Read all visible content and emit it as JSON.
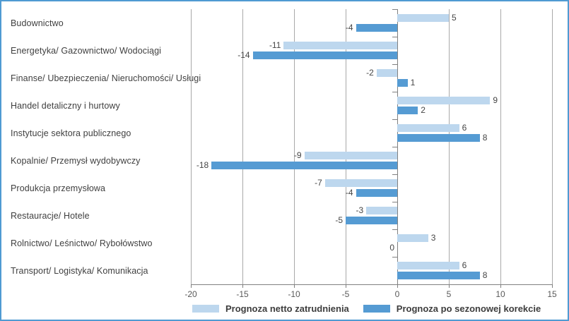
{
  "chart_data": {
    "type": "bar",
    "orientation": "horizontal",
    "title": "",
    "xlabel": "",
    "ylabel": "",
    "categories": [
      "Budownictwo",
      "Energetyka/ Gazownictwo/ Wodociągi",
      "Finanse/ Ubezpieczenia/ Nieruchomości/ Usługi",
      "Handel detaliczny i hurtowy",
      "Instytucje sektora publicznego",
      "Kopalnie/ Przemysł wydobywczy",
      "Produkcja przemysłowa",
      "Restauracje/ Hotele",
      "Rolnictwo/ Leśnictwo/ Rybołówstwo",
      "Transport/ Logistyka/ Komunikacja"
    ],
    "series": [
      {
        "name": "Prognoza netto zatrudnienia",
        "color": "#bdd7ee",
        "values": [
          5,
          -11,
          -2,
          9,
          6,
          -9,
          -7,
          -3,
          3,
          6
        ]
      },
      {
        "name": "Prognoza po sezonowej korekcie",
        "color": "#559bd3",
        "values": [
          -4,
          -14,
          1,
          2,
          8,
          -18,
          -4,
          -5,
          0,
          8
        ]
      }
    ],
    "xlim": [
      -20,
      15
    ],
    "xticks": [
      -20,
      -15,
      -10,
      -5,
      0,
      5,
      10,
      15
    ],
    "grid": true,
    "data_labels": true,
    "legend_position": "bottom"
  },
  "colors": {
    "frame_border": "#4f9ad2",
    "gridline": "#a9a9a9",
    "axis_line": "#808080",
    "label_text": "#3f3f3f",
    "tick_text": "#595959"
  }
}
